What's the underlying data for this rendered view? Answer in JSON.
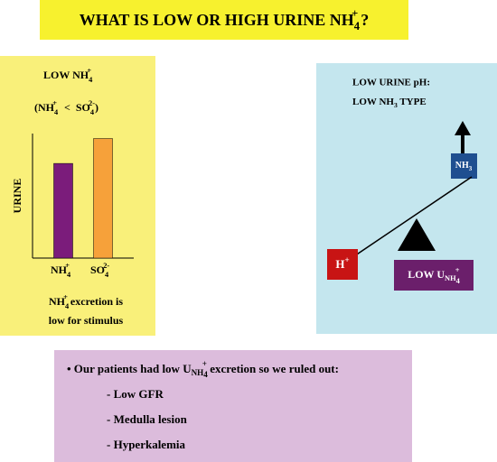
{
  "title": [
    "WHAT IS LOW OR HIGH URINE NH",
    "4",
    "+",
    "?"
  ],
  "left_panel": {
    "heading": [
      "LOW NH",
      "4",
      "+"
    ],
    "comparison": [
      "(NH",
      "4",
      "+",
      "<",
      "SO",
      "4",
      "2-",
      ")"
    ],
    "chart": {
      "type": "bar",
      "y_label": "URINE",
      "categories": [
        [
          "NH",
          "4",
          "+"
        ],
        [
          "SO",
          "4",
          "2-"
        ]
      ],
      "values": [
        76,
        96
      ],
      "colors": [
        "#7b1c7b",
        "#f6a13a"
      ],
      "ylim": [
        0,
        100
      ]
    },
    "caption": [
      [
        "NH",
        "4",
        "+",
        " excretion is"
      ],
      [
        "low for stimulus"
      ]
    ]
  },
  "right_panel": {
    "heading": [
      "LOW URINE pH:",
      [
        "LOW NH",
        "3",
        " TYPE"
      ]
    ],
    "nh3_box": [
      "NH",
      "3"
    ],
    "h_box": [
      "H",
      "+"
    ],
    "low_box": [
      "LOW U",
      "NH",
      "4",
      "+"
    ]
  },
  "bottom_panel": {
    "bullet": [
      "• Our patients had low U",
      "NH",
      "4",
      "+",
      " excretion so we ruled out:"
    ],
    "items": [
      "- Low GFR",
      "- Medulla lesion",
      "- Hyperkalemia"
    ]
  }
}
